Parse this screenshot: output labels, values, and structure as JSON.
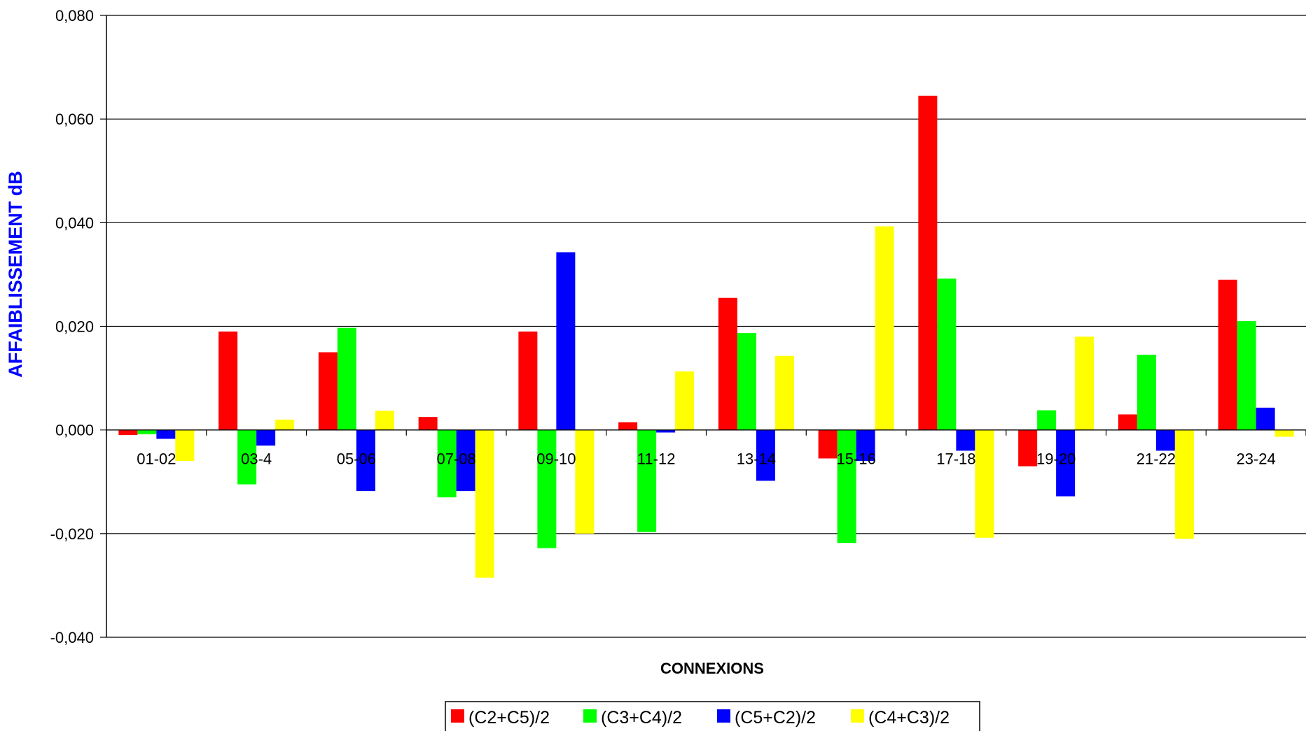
{
  "chart_data": {
    "type": "bar",
    "title": "",
    "xlabel": "CONNEXIONS",
    "ylabel": "AFFAIBLISSEMENT dB",
    "ylim": [
      -0.04,
      0.08
    ],
    "ytick_labels": [
      "-0,040",
      "-0,020",
      "0,000",
      "0,020",
      "0,040",
      "0,060",
      "0,080"
    ],
    "yticks": [
      -0.04,
      -0.02,
      0,
      0.02,
      0.04,
      0.06,
      0.08
    ],
    "grid": true,
    "legend_position": "bottom",
    "categories": [
      "01-02",
      "03-4",
      "05-06",
      "07-08",
      "09-10",
      "11-12",
      "13-14",
      "15-16",
      "17-18",
      "19-20",
      "21-22",
      "23-24"
    ],
    "series": [
      {
        "name": "(C2+C5)/2",
        "color": "#ff0000",
        "values": [
          -0.001,
          0.019,
          0.015,
          0.0025,
          0.019,
          0.0015,
          0.0255,
          -0.0055,
          0.0645,
          -0.007,
          0.003,
          0.029
        ]
      },
      {
        "name": "(C3+C4)/2",
        "color": "#00ff00",
        "values": [
          -0.0008,
          -0.0105,
          0.0197,
          -0.013,
          -0.0228,
          -0.0197,
          0.0187,
          -0.0218,
          0.0292,
          0.0038,
          0.0145,
          0.021
        ]
      },
      {
        "name": "(C5+C2)/2",
        "color": "#0000ff",
        "values": [
          -0.0017,
          -0.003,
          -0.0118,
          -0.0118,
          0.0343,
          -0.0005,
          -0.0098,
          -0.006,
          -0.004,
          -0.0128,
          -0.004,
          0.0043
        ]
      },
      {
        "name": "(C4+C3)/2",
        "color": "#ffff00",
        "values": [
          -0.006,
          0.002,
          0.0037,
          -0.0285,
          -0.02,
          0.0113,
          0.0143,
          0.0393,
          -0.0208,
          0.018,
          -0.021,
          -0.0013
        ]
      }
    ]
  }
}
